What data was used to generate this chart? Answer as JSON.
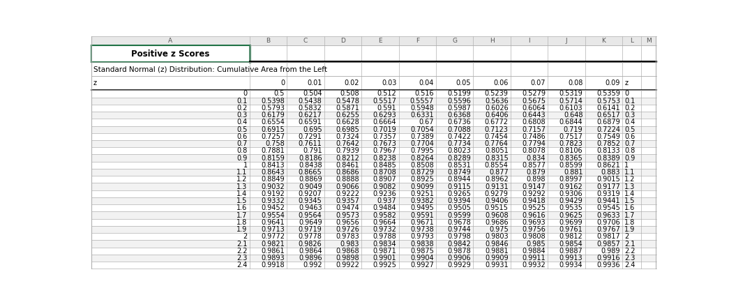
{
  "title": "Positive z Scores",
  "subtitle": "Standard Normal (z) Distribution: Cumulative Area from the Left",
  "col_headers": [
    "0",
    "0.01",
    "0.02",
    "0.03",
    "0.04",
    "0.05",
    "0.06",
    "0.07",
    "0.08",
    "0.09",
    "z"
  ],
  "row_labels": [
    "z",
    "0",
    "0.1",
    "0.2",
    "0.3",
    "0.4",
    "0.5",
    "0.6",
    "0.7",
    "0.8",
    "0.9",
    "1",
    "1.1",
    "1.2",
    "1.3",
    "1.4",
    "1.5",
    "1.6",
    "1.7",
    "1.8",
    "1.9",
    "2",
    "2.1",
    "2.2",
    "2.3",
    "2.4"
  ],
  "table_data": [
    [
      "0.5",
      "0.504",
      "0.508",
      "0.512",
      "0.516",
      "0.5199",
      "0.5239",
      "0.5279",
      "0.5319",
      "0.5359",
      "0"
    ],
    [
      "0.5398",
      "0.5438",
      "0.5478",
      "0.5517",
      "0.5557",
      "0.5596",
      "0.5636",
      "0.5675",
      "0.5714",
      "0.5753",
      "0.1"
    ],
    [
      "0.5793",
      "0.5832",
      "0.5871",
      "0.591",
      "0.5948",
      "0.5987",
      "0.6026",
      "0.6064",
      "0.6103",
      "0.6141",
      "0.2"
    ],
    [
      "0.6179",
      "0.6217",
      "0.6255",
      "0.6293",
      "0.6331",
      "0.6368",
      "0.6406",
      "0.6443",
      "0.648",
      "0.6517",
      "0.3"
    ],
    [
      "0.6554",
      "0.6591",
      "0.6628",
      "0.6664",
      "0.67",
      "0.6736",
      "0.6772",
      "0.6808",
      "0.6844",
      "0.6879",
      "0.4"
    ],
    [
      "0.6915",
      "0.695",
      "0.6985",
      "0.7019",
      "0.7054",
      "0.7088",
      "0.7123",
      "0.7157",
      "0.719",
      "0.7224",
      "0.5"
    ],
    [
      "0.7257",
      "0.7291",
      "0.7324",
      "0.7357",
      "0.7389",
      "0.7422",
      "0.7454",
      "0.7486",
      "0.7517",
      "0.7549",
      "0.6"
    ],
    [
      "0.758",
      "0.7611",
      "0.7642",
      "0.7673",
      "0.7704",
      "0.7734",
      "0.7764",
      "0.7794",
      "0.7823",
      "0.7852",
      "0.7"
    ],
    [
      "0.7881",
      "0.791",
      "0.7939",
      "0.7967",
      "0.7995",
      "0.8023",
      "0.8051",
      "0.8078",
      "0.8106",
      "0.8133",
      "0.8"
    ],
    [
      "0.8159",
      "0.8186",
      "0.8212",
      "0.8238",
      "0.8264",
      "0.8289",
      "0.8315",
      "0.834",
      "0.8365",
      "0.8389",
      "0.9"
    ],
    [
      "0.8413",
      "0.8438",
      "0.8461",
      "0.8485",
      "0.8508",
      "0.8531",
      "0.8554",
      "0.8577",
      "0.8599",
      "0.8621",
      "1"
    ],
    [
      "0.8643",
      "0.8665",
      "0.8686",
      "0.8708",
      "0.8729",
      "0.8749",
      "0.877",
      "0.879",
      "0.881",
      "0.883",
      "1.1"
    ],
    [
      "0.8849",
      "0.8869",
      "0.8888",
      "0.8907",
      "0.8925",
      "0.8944",
      "0.8962",
      "0.898",
      "0.8997",
      "0.9015",
      "1.2"
    ],
    [
      "0.9032",
      "0.9049",
      "0.9066",
      "0.9082",
      "0.9099",
      "0.9115",
      "0.9131",
      "0.9147",
      "0.9162",
      "0.9177",
      "1.3"
    ],
    [
      "0.9192",
      "0.9207",
      "0.9222",
      "0.9236",
      "0.9251",
      "0.9265",
      "0.9279",
      "0.9292",
      "0.9306",
      "0.9319",
      "1.4"
    ],
    [
      "0.9332",
      "0.9345",
      "0.9357",
      "0.937",
      "0.9382",
      "0.9394",
      "0.9406",
      "0.9418",
      "0.9429",
      "0.9441",
      "1.5"
    ],
    [
      "0.9452",
      "0.9463",
      "0.9474",
      "0.9484",
      "0.9495",
      "0.9505",
      "0.9515",
      "0.9525",
      "0.9535",
      "0.9545",
      "1.6"
    ],
    [
      "0.9554",
      "0.9564",
      "0.9573",
      "0.9582",
      "0.9591",
      "0.9599",
      "0.9608",
      "0.9616",
      "0.9625",
      "0.9633",
      "1.7"
    ],
    [
      "0.9641",
      "0.9649",
      "0.9656",
      "0.9664",
      "0.9671",
      "0.9678",
      "0.9686",
      "0.9693",
      "0.9699",
      "0.9706",
      "1.8"
    ],
    [
      "0.9713",
      "0.9719",
      "0.9726",
      "0.9732",
      "0.9738",
      "0.9744",
      "0.975",
      "0.9756",
      "0.9761",
      "0.9767",
      "1.9"
    ],
    [
      "0.9772",
      "0.9778",
      "0.9783",
      "0.9788",
      "0.9793",
      "0.9798",
      "0.9803",
      "0.9808",
      "0.9812",
      "0.9817",
      "2"
    ],
    [
      "0.9821",
      "0.9826",
      "0.983",
      "0.9834",
      "0.9838",
      "0.9842",
      "0.9846",
      "0.985",
      "0.9854",
      "0.9857",
      "2.1"
    ],
    [
      "0.9861",
      "0.9864",
      "0.9868",
      "0.9871",
      "0.9875",
      "0.9878",
      "0.9881",
      "0.9884",
      "0.9887",
      "0.989",
      "2.2"
    ],
    [
      "0.9893",
      "0.9896",
      "0.9898",
      "0.9901",
      "0.9904",
      "0.9906",
      "0.9909",
      "0.9911",
      "0.9913",
      "0.9916",
      "2.3"
    ],
    [
      "0.9918",
      "0.992",
      "0.9922",
      "0.9925",
      "0.9927",
      "0.9929",
      "0.9931",
      "0.9932",
      "0.9934",
      "0.9936",
      "2.4"
    ]
  ],
  "green_border": "#217346",
  "grid_color": "#b0b0b0",
  "thick_line_color": "#000000",
  "alt_row_bg": "#f2f2f2",
  "normal_row_bg": "#ffffff",
  "spreadsheet_header_bg": "#e8e8e8",
  "spreadsheet_header_text": "#555555",
  "spreadsheet_col_labels": [
    "A",
    "B",
    "C",
    "D",
    "E",
    "F",
    "G",
    "H",
    "I",
    "J",
    "K",
    "L",
    "M"
  ],
  "title_fontsize": 8.5,
  "subtitle_fontsize": 7.5,
  "data_fontsize": 7.0
}
